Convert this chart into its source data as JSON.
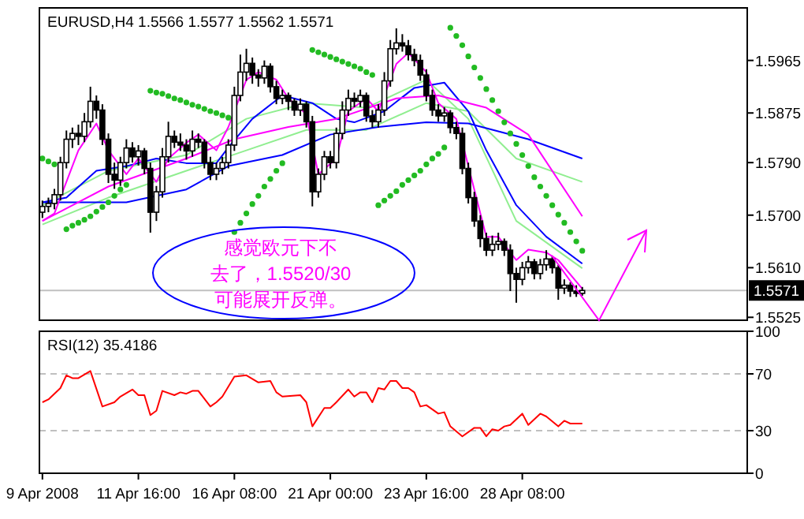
{
  "chart_data": [
    {
      "type": "candlestick",
      "title": "EURUSD,H4 1.5566 1.5577 1.5562 1.5571",
      "categories": [
        null,
        null,
        null,
        null,
        null,
        null,
        null,
        null,
        null,
        null,
        null,
        null,
        null,
        null,
        null,
        null,
        null,
        null,
        null,
        null,
        null,
        null,
        null,
        null,
        null,
        null,
        null,
        null,
        null,
        null,
        null,
        null,
        null,
        null,
        null,
        null,
        null,
        null,
        null,
        null,
        null,
        null,
        null,
        null,
        null,
        null,
        null,
        null,
        null,
        null,
        null,
        null,
        null,
        null,
        null,
        null,
        null,
        null,
        null,
        null,
        null,
        null,
        null,
        null,
        null,
        null,
        null,
        null,
        null,
        null,
        null,
        null,
        null,
        null,
        null,
        null,
        null,
        null,
        null,
        null,
        null,
        null,
        null,
        null,
        null,
        null,
        null,
        null,
        null,
        null,
        null,
        null,
        null,
        null,
        null,
        null,
        null,
        null,
        null,
        null,
        null,
        null,
        null,
        null,
        null,
        null,
        null,
        null,
        null,
        null,
        null,
        null,
        null,
        null,
        null,
        null,
        null,
        null
      ],
      "ohlc": [
        [
          1.5705,
          1.5725,
          1.5695,
          1.5715
        ],
        [
          1.5715,
          1.573,
          1.5705,
          1.572
        ],
        [
          1.572,
          1.5745,
          1.571,
          1.5735
        ],
        [
          1.5735,
          1.58,
          1.5725,
          1.579
        ],
        [
          1.579,
          1.5845,
          1.578,
          1.583
        ],
        [
          1.583,
          1.585,
          1.5815,
          1.584
        ],
        [
          1.584,
          1.5855,
          1.582,
          1.5835
        ],
        [
          1.5835,
          1.5875,
          1.5825,
          1.586
        ],
        [
          1.586,
          1.592,
          1.585,
          1.5895
        ],
        [
          1.5895,
          1.5905,
          1.5865,
          1.588
        ],
        [
          1.588,
          1.589,
          1.582,
          1.583
        ],
        [
          1.583,
          1.584,
          1.5755,
          1.577
        ],
        [
          1.577,
          1.579,
          1.5745,
          1.576
        ],
        [
          1.576,
          1.58,
          1.575,
          1.579
        ],
        [
          1.579,
          1.583,
          1.578,
          1.5815
        ],
        [
          1.5815,
          1.5825,
          1.579,
          1.58
        ],
        [
          1.58,
          1.582,
          1.5785,
          1.581
        ],
        [
          1.581,
          1.5815,
          1.577,
          1.578
        ],
        [
          1.578,
          1.579,
          1.567,
          1.5705
        ],
        [
          1.5705,
          1.575,
          1.569,
          1.574
        ],
        [
          1.574,
          1.5815,
          1.573,
          1.58
        ],
        [
          1.58,
          1.586,
          1.579,
          1.5835
        ],
        [
          1.5835,
          1.5845,
          1.5815,
          1.5825
        ],
        [
          1.5825,
          1.584,
          1.581,
          1.582
        ],
        [
          1.582,
          1.583,
          1.5795,
          1.581
        ],
        [
          1.581,
          1.5845,
          1.58,
          1.583
        ],
        [
          1.583,
          1.584,
          1.5815,
          1.5825
        ],
        [
          1.5825,
          1.583,
          1.578,
          1.579
        ],
        [
          1.579,
          1.58,
          1.576,
          1.577
        ],
        [
          1.577,
          1.579,
          1.576,
          1.578
        ],
        [
          1.578,
          1.58,
          1.577,
          1.579
        ],
        [
          1.579,
          1.583,
          1.578,
          1.582
        ],
        [
          1.582,
          1.592,
          1.581,
          1.5905
        ],
        [
          1.5905,
          1.5975,
          1.5895,
          1.5945
        ],
        [
          1.5945,
          1.5985,
          1.593,
          1.596
        ],
        [
          1.596,
          1.597,
          1.5925,
          1.594
        ],
        [
          1.594,
          1.595,
          1.592,
          1.5935
        ],
        [
          1.5935,
          1.5965,
          1.5925,
          1.5955
        ],
        [
          1.5955,
          1.596,
          1.591,
          1.592
        ],
        [
          1.592,
          1.593,
          1.589,
          1.59
        ],
        [
          1.59,
          1.5915,
          1.589,
          1.5905
        ],
        [
          1.5905,
          1.591,
          1.588,
          1.5895
        ],
        [
          1.5895,
          1.59,
          1.587,
          1.588
        ],
        [
          1.588,
          1.59,
          1.587,
          1.589
        ],
        [
          1.589,
          1.5895,
          1.585,
          1.586
        ],
        [
          1.586,
          1.587,
          1.5715,
          1.574
        ],
        [
          1.574,
          1.578,
          1.573,
          1.577
        ],
        [
          1.577,
          1.581,
          1.576,
          1.58
        ],
        [
          1.58,
          1.581,
          1.578,
          1.579
        ],
        [
          1.579,
          1.585,
          1.578,
          1.584
        ],
        [
          1.584,
          1.5895,
          1.583,
          1.588
        ],
        [
          1.588,
          1.5915,
          1.587,
          1.59
        ],
        [
          1.59,
          1.591,
          1.5885,
          1.5895
        ],
        [
          1.5895,
          1.5915,
          1.5885,
          1.5905
        ],
        [
          1.5905,
          1.591,
          1.586,
          1.587
        ],
        [
          1.587,
          1.588,
          1.585,
          1.586
        ],
        [
          1.586,
          1.589,
          1.585,
          1.588
        ],
        [
          1.588,
          1.5945,
          1.587,
          1.593
        ],
        [
          1.593,
          1.6,
          1.592,
          1.5985
        ],
        [
          1.5985,
          1.602,
          1.5975,
          1.5995
        ],
        [
          1.5995,
          1.601,
          1.598,
          1.599
        ],
        [
          1.599,
          1.6,
          1.5965,
          1.5975
        ],
        [
          1.5975,
          1.5985,
          1.5955,
          1.5965
        ],
        [
          1.5965,
          1.5975,
          1.593,
          1.594
        ],
        [
          1.594,
          1.595,
          1.5895,
          1.5905
        ],
        [
          1.5905,
          1.5915,
          1.587,
          1.588
        ],
        [
          1.588,
          1.589,
          1.586,
          1.587
        ],
        [
          1.587,
          1.5885,
          1.586,
          1.5875
        ],
        [
          1.5875,
          1.588,
          1.584,
          1.585
        ],
        [
          1.585,
          1.586,
          1.583,
          1.584
        ],
        [
          1.584,
          1.585,
          1.577,
          1.578
        ],
        [
          1.578,
          1.579,
          1.572,
          1.573
        ],
        [
          1.573,
          1.574,
          1.568,
          1.569
        ],
        [
          1.569,
          1.57,
          1.5645,
          1.566
        ],
        [
          1.566,
          1.567,
          1.563,
          1.564
        ],
        [
          1.564,
          1.5665,
          1.563,
          1.565
        ],
        [
          1.565,
          1.567,
          1.564,
          1.5655
        ],
        [
          1.5655,
          1.566,
          1.563,
          1.564
        ],
        [
          1.564,
          1.565,
          1.557,
          1.56
        ],
        [
          1.56,
          1.561,
          1.555,
          1.559
        ],
        [
          1.559,
          1.562,
          1.558,
          1.561
        ],
        [
          1.561,
          1.563,
          1.56,
          1.562
        ],
        [
          1.562,
          1.5625,
          1.559,
          1.56
        ],
        [
          1.56,
          1.5625,
          1.559,
          1.5615
        ],
        [
          1.5615,
          1.564,
          1.5605,
          1.5625
        ],
        [
          1.5625,
          1.563,
          1.56,
          1.561
        ],
        [
          1.561,
          1.5615,
          1.5555,
          1.5575
        ],
        [
          1.5575,
          1.559,
          1.5565,
          1.558
        ],
        [
          1.558,
          1.5585,
          1.556,
          1.557
        ],
        [
          1.557,
          1.558,
          1.556,
          1.5566
        ],
        [
          1.5566,
          1.5577,
          1.5562,
          1.5571
        ],
        null,
        null,
        null,
        null,
        null,
        null,
        null,
        null,
        null,
        null,
        null,
        null,
        null,
        null,
        null,
        null,
        null,
        null,
        null,
        null,
        null,
        null,
        null,
        null,
        null,
        null,
        null
      ],
      "colors": [
        "#ffffff",
        "#ffffff",
        "#ffffff",
        "#ffffff",
        "#ffffff",
        "#ffffff",
        "#000000",
        "#ffffff",
        "#ffffff",
        "#000000",
        "#000000",
        "#000000",
        "#000000",
        "#ffffff",
        "#ffffff",
        "#000000",
        "#ffffff",
        "#000000",
        "#000000",
        "#ffffff",
        "#ffffff",
        "#ffffff",
        "#000000",
        "#000000",
        "#000000",
        "#ffffff",
        "#000000",
        "#000000",
        "#000000",
        "#ffffff",
        "#ffffff",
        "#ffffff",
        "#ffffff",
        "#ffffff",
        "#ffffff",
        "#000000",
        "#000000",
        "#ffffff",
        "#000000",
        "#000000",
        "#ffffff",
        "#000000",
        "#000000",
        "#ffffff",
        "#000000",
        "#000000",
        "#ffffff",
        "#ffffff",
        "#000000",
        "#ffffff",
        "#ffffff",
        "#ffffff",
        "#000000",
        "#ffffff",
        "#000000",
        "#000000",
        "#ffffff",
        "#ffffff",
        "#ffffff",
        "#ffffff",
        "#000000",
        "#000000",
        "#000000",
        "#000000",
        "#000000",
        "#000000",
        "#000000",
        "#ffffff",
        "#000000",
        "#000000",
        "#000000",
        "#000000",
        "#000000",
        "#000000",
        "#000000",
        "#ffffff",
        "#ffffff",
        "#000000",
        "#000000",
        "#000000",
        "#ffffff",
        "#ffffff",
        "#000000",
        "#ffffff",
        "#ffffff",
        "#000000",
        "#000000",
        "#ffffff",
        "#000000",
        "#000000",
        "#ffffff",
        null,
        null,
        null,
        null,
        null,
        null,
        null,
        null,
        null,
        null,
        null,
        null,
        null,
        null,
        null,
        null,
        null,
        null,
        null,
        null,
        null,
        null,
        null,
        null,
        null,
        null,
        null
      ],
      "series": [
        {
          "type": "line",
          "color": "#90ee90",
          "values": [
            1.5717,
            null,
            null,
            null,
            null,
            null,
            null,
            null,
            null,
            null,
            null,
            1.5776,
            null,
            null,
            null,
            null,
            null,
            null,
            null,
            null,
            null,
            null,
            null,
            null,
            1.5803,
            null,
            null,
            null,
            null,
            null,
            null,
            null,
            null,
            null,
            1.5865,
            null,
            null,
            null,
            null,
            null,
            null,
            null,
            null,
            null,
            1.5892,
            null,
            null,
            null,
            null,
            null,
            null,
            null,
            null,
            null,
            1.5884,
            null,
            null,
            null,
            null,
            null,
            null,
            null,
            null,
            null,
            1.5932,
            null,
            null,
            null,
            null,
            null,
            null,
            1.5865,
            null,
            null,
            null,
            null,
            null,
            null,
            null,
            1.569,
            null,
            null,
            null,
            null,
            null,
            null,
            null,
            null,
            null,
            null,
            1.5609,
            null,
            null,
            null,
            null,
            null,
            null,
            null,
            null,
            null,
            null,
            null,
            null,
            null,
            null,
            null,
            null,
            null,
            null,
            null,
            null,
            null,
            null,
            null,
            null,
            null,
            null,
            null
          ]
        },
        {
          "type": "line",
          "color": "#90ee90",
          "values": [
            1.5684,
            null,
            null,
            null,
            null,
            null,
            null,
            null,
            null,
            null,
            null,
            1.573,
            null,
            null,
            null,
            null,
            null,
            null,
            null,
            null,
            null,
            null,
            null,
            null,
            1.5776,
            null,
            null,
            null,
            null,
            null,
            null,
            null,
            null,
            null,
            1.5811,
            null,
            null,
            null,
            null,
            null,
            null,
            null,
            null,
            null,
            1.5846,
            null,
            null,
            null,
            null,
            null,
            null,
            null,
            null,
            null,
            1.5846,
            null,
            null,
            null,
            null,
            null,
            null,
            null,
            null,
            null,
            1.5892,
            null,
            null,
            null,
            null,
            null,
            null,
            1.5878,
            null,
            null,
            null,
            null,
            null,
            null,
            null,
            1.5797,
            null,
            null,
            null,
            null,
            null,
            null,
            null,
            null,
            null,
            null,
            1.5757,
            null,
            null,
            null,
            null,
            null,
            null,
            null,
            null,
            null,
            null,
            null,
            null,
            null,
            null,
            null,
            null,
            null,
            null,
            null,
            null,
            null,
            null,
            null,
            null,
            null,
            null,
            null
          ]
        },
        {
          "type": "line",
          "color": "#0000ff",
          "values": [
            1.5722,
            null,
            null,
            null,
            null,
            null,
            null,
            null,
            null,
            null,
            null,
            null,
            null,
            null,
            1.5722,
            null,
            null,
            null,
            null,
            null,
            null,
            null,
            null,
            null,
            1.5744,
            null,
            null,
            null,
            null,
            null,
            null,
            1.5784,
            null,
            null,
            null,
            null,
            null,
            null,
            null,
            null,
            1.5803,
            null,
            null,
            null,
            null,
            null,
            null,
            null,
            1.5838,
            null,
            null,
            null,
            null,
            null,
            null,
            null,
            1.5851,
            null,
            null,
            null,
            null,
            null,
            null,
            null,
            1.5859,
            null,
            null,
            null,
            null,
            null,
            null,
            1.5857,
            null,
            null,
            null,
            null,
            null,
            null,
            null,
            null,
            null,
            1.583,
            null,
            null,
            null,
            null,
            null,
            null,
            null,
            null,
            1.5797,
            null,
            null,
            null,
            null,
            null,
            null,
            null,
            null,
            null,
            null,
            null,
            null,
            null,
            null,
            null,
            null,
            null,
            null,
            null,
            null,
            null,
            null,
            null,
            null,
            null,
            null,
            null
          ]
        },
        {
          "type": "line",
          "color": "#0000ff",
          "values": [
            1.5722,
            null,
            null,
            null,
            1.573,
            null,
            null,
            null,
            null,
            1.5776,
            null,
            null,
            null,
            null,
            1.5784,
            null,
            null,
            null,
            null,
            1.5797,
            null,
            null,
            null,
            null,
            1.5789,
            null,
            null,
            null,
            null,
            1.5789,
            null,
            1.5816,
            null,
            null,
            null,
            1.5865,
            null,
            null,
            null,
            null,
            1.5905,
            null,
            null,
            null,
            null,
            1.5892,
            null,
            null,
            null,
            1.5865,
            null,
            null,
            1.5859,
            null,
            null,
            null,
            null,
            1.5878,
            null,
            null,
            null,
            null,
            1.5918,
            null,
            null,
            null,
            null,
            1.5927,
            null,
            null,
            null,
            1.5878,
            null,
            null,
            1.5811,
            null,
            null,
            null,
            null,
            1.5717,
            null,
            null,
            null,
            null,
            1.5663,
            null,
            null,
            null,
            null,
            null,
            1.5617,
            null,
            null,
            null,
            null,
            null,
            null,
            null,
            null,
            null,
            null,
            null,
            null,
            null,
            null,
            null,
            null,
            null,
            null,
            null,
            null,
            null,
            null,
            null,
            null,
            null,
            null,
            null
          ]
        },
        {
          "type": "line",
          "color": "#ff00ff",
          "values": [
            1.569,
            null,
            null,
            null,
            null,
            null,
            null,
            null,
            null,
            null,
            null,
            1.5749,
            null,
            null,
            null,
            null,
            null,
            null,
            null,
            null,
            null,
            null,
            null,
            null,
            1.5797,
            null,
            null,
            null,
            null,
            null,
            null,
            null,
            1.583,
            null,
            null,
            null,
            null,
            null,
            null,
            null,
            null,
            1.5851,
            null,
            null,
            null,
            null,
            null,
            null,
            null,
            1.5865,
            null,
            null,
            null,
            null,
            null,
            null,
            null,
            null,
            null,
            1.59,
            null,
            null,
            null,
            null,
            null,
            null,
            1.5905,
            null,
            null,
            null,
            null,
            null,
            null,
            null,
            1.5884,
            null,
            null,
            null,
            null,
            null,
            null,
            1.5838,
            null,
            null,
            null,
            null,
            null,
            null,
            null,
            null,
            1.5698,
            null,
            null,
            null,
            null,
            null,
            null,
            null,
            null,
            null,
            null,
            null,
            null,
            null,
            null,
            null,
            null,
            null,
            null,
            null,
            null,
            null,
            null,
            null,
            null,
            null,
            null,
            null
          ]
        },
        {
          "type": "line",
          "color": "#ff00ff",
          "values": [
            1.569,
            null,
            1.5703,
            null,
            null,
            null,
            1.5811,
            null,
            null,
            1.5857,
            null,
            1.5811,
            null,
            null,
            1.577,
            null,
            1.5797,
            null,
            null,
            1.5757,
            null,
            1.5797,
            null,
            null,
            1.5824,
            null,
            1.5838,
            null,
            null,
            1.5811,
            null,
            1.5851,
            null,
            null,
            1.5932,
            null,
            1.5945,
            null,
            null,
            1.5932,
            null,
            1.59,
            null,
            null,
            1.5873,
            null,
            1.577,
            null,
            null,
            1.5797,
            null,
            1.5878,
            null,
            null,
            1.59,
            null,
            1.5878,
            null,
            null,
            1.5959,
            null,
            1.5978,
            null,
            null,
            1.5945,
            null,
            1.5892,
            null,
            null,
            1.5865,
            null,
            null,
            null,
            null,
            1.5663,
            null,
            1.5663,
            null,
            null,
            1.5623,
            null,
            1.5641,
            null,
            null,
            1.5636,
            null,
            1.5623,
            null,
            null,
            null,
            1.5574,
            null,
            null,
            null,
            null,
            null,
            null,
            null,
            null,
            null,
            null,
            null,
            null,
            null,
            null,
            null,
            null,
            null,
            null,
            null,
            null,
            null,
            null,
            null,
            null,
            null,
            null,
            null
          ]
        },
        {
          "type": "scatter",
          "color": "#22bb22",
          "marker": "circle",
          "values": [
            1.5797,
            1.5792,
            1.5787,
            null,
            1.5676,
            1.5682,
            1.5687,
            1.5692,
            1.5698,
            1.5706,
            1.5714,
            1.5722,
            1.5733,
            1.5744,
            1.5752,
            null,
            null,
            null,
            1.5913,
            1.591,
            1.5908,
            1.5904,
            1.59,
            1.5897,
            1.5893,
            1.5889,
            1.5886,
            1.5882,
            1.5878,
            1.5875,
            1.5871,
            1.5867,
            1.5671,
            1.5687,
            1.5703,
            1.5719,
            1.5733,
            1.5749,
            1.5762,
            1.5776,
            1.5789,
            null,
            null,
            null,
            null,
            1.5983,
            1.5979,
            1.5975,
            1.5971,
            1.5967,
            1.5963,
            1.5959,
            1.5955,
            1.5951,
            1.5945,
            1.594,
            1.5717,
            1.5725,
            1.5733,
            1.5741,
            1.5752,
            1.576,
            1.5768,
            1.5776,
            1.5787,
            1.5797,
            1.5805,
            1.5816,
            1.6021,
            1.6007,
            1.5991,
            1.5972,
            1.5953,
            1.5935,
            1.5916,
            1.5897,
            1.5878,
            1.5859,
            1.584,
            1.5822,
            1.5803,
            1.5784,
            1.5765,
            1.5749,
            1.5733,
            1.5717,
            1.5701,
            1.5687,
            1.5671,
            1.5655,
            1.5639,
            null,
            null,
            null,
            null,
            null,
            null,
            null,
            null,
            null,
            null,
            null,
            null,
            null,
            null,
            null,
            null,
            null,
            null,
            null,
            null,
            null,
            null,
            null,
            null,
            null,
            null,
            null
          ]
        }
      ],
      "ylim": [
        1.552,
        1.6055
      ],
      "yticks": [
        1.5965,
        1.5875,
        {
          "value": 1.579,
          "label": "1.5790"
        },
        {
          "value": 1.57,
          "label": "1.5700"
        },
        {
          "value": 1.561,
          "label": "1.5610"
        },
        1.5525
      ],
      "ref_lines": [
        {
          "axis": "y",
          "value": 1.5571,
          "label": "1.5571",
          "color": "#c0c0c0"
        }
      ],
      "annotations": [
        "感觉欧元下不",
        "去了，1.5520/30",
        "可能展开反弹。"
      ],
      "tick_labels": "y"
    },
    {
      "type": "line",
      "title": "RSI(12) 35.4186",
      "categories": [
        "9 Apr 2008",
        null,
        null,
        null,
        null,
        null,
        null,
        null,
        null,
        null,
        null,
        null,
        null,
        null,
        null,
        null,
        "11 Apr 16:00",
        null,
        null,
        null,
        null,
        null,
        null,
        null,
        null,
        null,
        null,
        null,
        null,
        null,
        null,
        null,
        "16 Apr 08:00",
        null,
        null,
        null,
        null,
        null,
        null,
        null,
        null,
        null,
        null,
        null,
        null,
        null,
        null,
        null,
        "21 Apr 00:00",
        null,
        null,
        null,
        null,
        null,
        null,
        null,
        null,
        null,
        null,
        null,
        null,
        null,
        null,
        null,
        "23 Apr 16:00",
        null,
        null,
        null,
        null,
        null,
        null,
        null,
        null,
        null,
        null,
        null,
        null,
        null,
        null,
        null,
        "28 Apr 08:00",
        null,
        null,
        null,
        null,
        null,
        null,
        null,
        null,
        null,
        null,
        null,
        null,
        null,
        null,
        null,
        null,
        null,
        null,
        null,
        null,
        null,
        null,
        null,
        null,
        null,
        null,
        null,
        null,
        null,
        null,
        null,
        null,
        null,
        null,
        null,
        null,
        null
      ],
      "series": [
        {
          "color": "#ff0000",
          "values": [
            50,
            52,
            null,
            60,
            69,
            67,
            67,
            null,
            72,
            null,
            47,
            null,
            50,
            54,
            null,
            59,
            55,
            55,
            41,
            44,
            58,
            null,
            55,
            57,
            56,
            58,
            58,
            null,
            47,
            50,
            54,
            null,
            68,
            null,
            69,
            null,
            64,
            null,
            65,
            57,
            54,
            null,
            null,
            55,
            50,
            33,
            null,
            46,
            46,
            50,
            null,
            59,
            54,
            57,
            57,
            50,
            60,
            59,
            65,
            65,
            60,
            60,
            57,
            47,
            48,
            null,
            42,
            43,
            33,
            null,
            26,
            null,
            32,
            32,
            26,
            31,
            30,
            33,
            34,
            null,
            42,
            34,
            null,
            42,
            40,
            null,
            33,
            37,
            35,
            null,
            35,
            null,
            null,
            null,
            null,
            null,
            null,
            null,
            null,
            null,
            null,
            null,
            null,
            null,
            null,
            null,
            null,
            null,
            null,
            null,
            null,
            null,
            null,
            null,
            null,
            null,
            null,
            null
          ]
        }
      ],
      "ylim": [
        0,
        100
      ],
      "yticks": [
        100,
        70,
        30,
        0
      ],
      "ref_lines": [
        {
          "axis": "y",
          "value": 70,
          "color": "#c0c0c0",
          "line_style": "dashed"
        },
        {
          "axis": "y",
          "value": 30,
          "color": "#c0c0c0",
          "line_style": "dashed"
        }
      ]
    }
  ]
}
